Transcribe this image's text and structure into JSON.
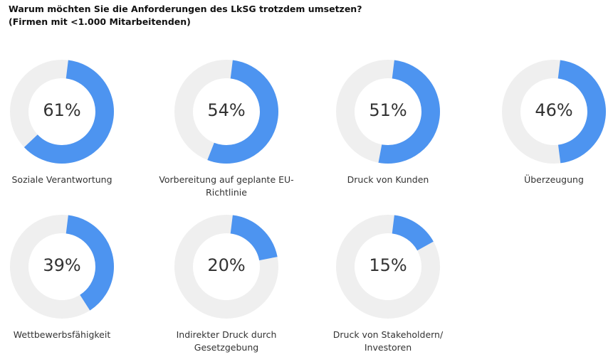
{
  "chart_data": {
    "type": "pie",
    "subtype": "donut",
    "title": "Warum möchten Sie die Anforderungen des LkSG trotzdem umsetzen?",
    "subtitle": "(Firmen mit <1.000 Mitarbeitenden)",
    "colors": {
      "value": "#4d94f0",
      "remainder": "#efefef"
    },
    "items": [
      {
        "label": "Soziale Verantwortung",
        "value": 61,
        "display": "61%"
      },
      {
        "label": "Vorbereitung auf geplante EU-Richtlinie",
        "value": 54,
        "display": "54%"
      },
      {
        "label": "Druck von Kunden",
        "value": 51,
        "display": "51%"
      },
      {
        "label": "Überzeugung",
        "value": 46,
        "display": "46%"
      },
      {
        "label": "Wettbewerbsfähigkeit",
        "value": 39,
        "display": "39%"
      },
      {
        "label": "Indirekter Druck durch Gesetzgebung",
        "value": 20,
        "display": "20%"
      },
      {
        "label": "Druck von Stakeholdern/ Investoren",
        "value": 15,
        "display": "15%"
      }
    ]
  }
}
